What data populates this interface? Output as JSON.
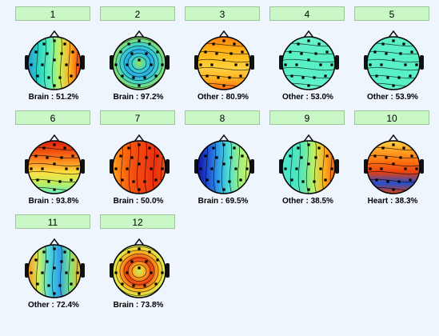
{
  "components": [
    {
      "id": "1",
      "label": "Brain : 51.2%",
      "stops": [
        "#2a9ad8",
        "#2ad6c0",
        "#5cf0c0",
        "#c8f060",
        "#ffb020",
        "#f04010"
      ],
      "dir": "lr"
    },
    {
      "id": "2",
      "label": "Brain : 97.2%",
      "stops": [
        "#b4e840",
        "#88e070",
        "#40d8c8",
        "#28b0e8",
        "#40d8c8",
        "#a0e050"
      ],
      "dir": "radial"
    },
    {
      "id": "3",
      "label": "Other : 80.9%",
      "stops": [
        "#ff7a10",
        "#ffaa10",
        "#ffc020",
        "#ffd040",
        "#ffb020",
        "#ff6a10"
      ],
      "dir": "tb"
    },
    {
      "id": "4",
      "label": "Other : 53.0%",
      "stops": [
        "#6af2c8",
        "#60f0c8",
        "#58f0c4",
        "#58f0c4",
        "#5cf0c8",
        "#6af2c8"
      ],
      "dir": "tb"
    },
    {
      "id": "5",
      "label": "Other : 53.9%",
      "stops": [
        "#5ef0c6",
        "#58f0c4",
        "#5af0c6",
        "#5af0c6",
        "#58f0c4",
        "#5ef0c6"
      ],
      "dir": "tb"
    },
    {
      "id": "6",
      "label": "Brain : 93.8%",
      "stops": [
        "#e02010",
        "#f05010",
        "#ff9020",
        "#ffe040",
        "#c0f060",
        "#60f0c0"
      ],
      "dir": "tb"
    },
    {
      "id": "7",
      "label": "Brain : 50.0%",
      "stops": [
        "#ffa020",
        "#ff7010",
        "#f05010",
        "#f04010",
        "#e83010",
        "#f05010"
      ],
      "dir": "lr"
    },
    {
      "id": "8",
      "label": "Brain : 69.5%",
      "stops": [
        "#1010a0",
        "#2050d0",
        "#30a0e8",
        "#50e0d0",
        "#a0f080",
        "#d0f060"
      ],
      "dir": "lr"
    },
    {
      "id": "9",
      "label": "Other : 38.5%",
      "stops": [
        "#50e8c8",
        "#48e4c8",
        "#60e8b0",
        "#c0f060",
        "#ffb020",
        "#f06010"
      ],
      "dir": "lr"
    },
    {
      "id": "10",
      "label": "Heart : 38.3%",
      "stops": [
        "#ffd040",
        "#ffa020",
        "#ff7010",
        "#e84010",
        "#2050d0",
        "#e04010"
      ],
      "dir": "tb"
    },
    {
      "id": "11",
      "label": "Other : 72.4%",
      "stops": [
        "#ff9020",
        "#d0f060",
        "#50d8d8",
        "#30a0e8",
        "#80e880",
        "#ffb020"
      ],
      "dir": "lr"
    },
    {
      "id": "12",
      "label": "Brain : 73.8%",
      "stops": [
        "#c0f060",
        "#e0f050",
        "#ffb020",
        "#f04010",
        "#ffb020",
        "#c0f060"
      ],
      "dir": "radial"
    }
  ]
}
